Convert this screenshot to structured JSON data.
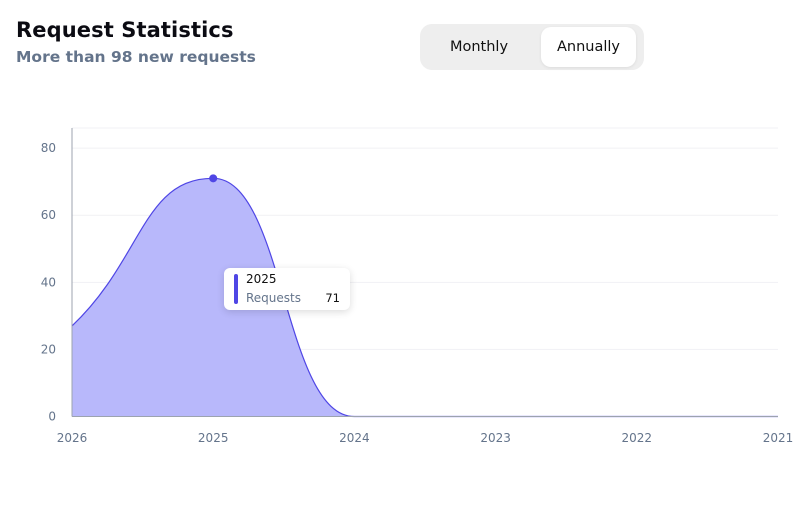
{
  "header": {
    "title": "Request Statistics",
    "subtitle": "More than 98 new requests"
  },
  "toggle": {
    "options": [
      "Monthly",
      "Annually"
    ],
    "selected": "Annually"
  },
  "colors": {
    "series_fill": "#b8b8fb",
    "series_line": "#4f46e5",
    "grid": "#f1f1f4",
    "axis": "#9ca3af"
  },
  "tooltip": {
    "title": "2025",
    "label": "Requests",
    "value": "71"
  },
  "chart_data": {
    "type": "area",
    "x": [
      "2026",
      "2025",
      "2024",
      "2023",
      "2022",
      "2021"
    ],
    "series": [
      {
        "name": "Requests",
        "values": [
          27,
          71,
          0,
          0,
          0,
          0
        ]
      }
    ],
    "ylim": [
      0,
      86
    ],
    "yticks": [
      0,
      20,
      40,
      60,
      80
    ],
    "grid": true,
    "highlight_index": 1,
    "xlabel": "",
    "ylabel": "",
    "title": ""
  }
}
